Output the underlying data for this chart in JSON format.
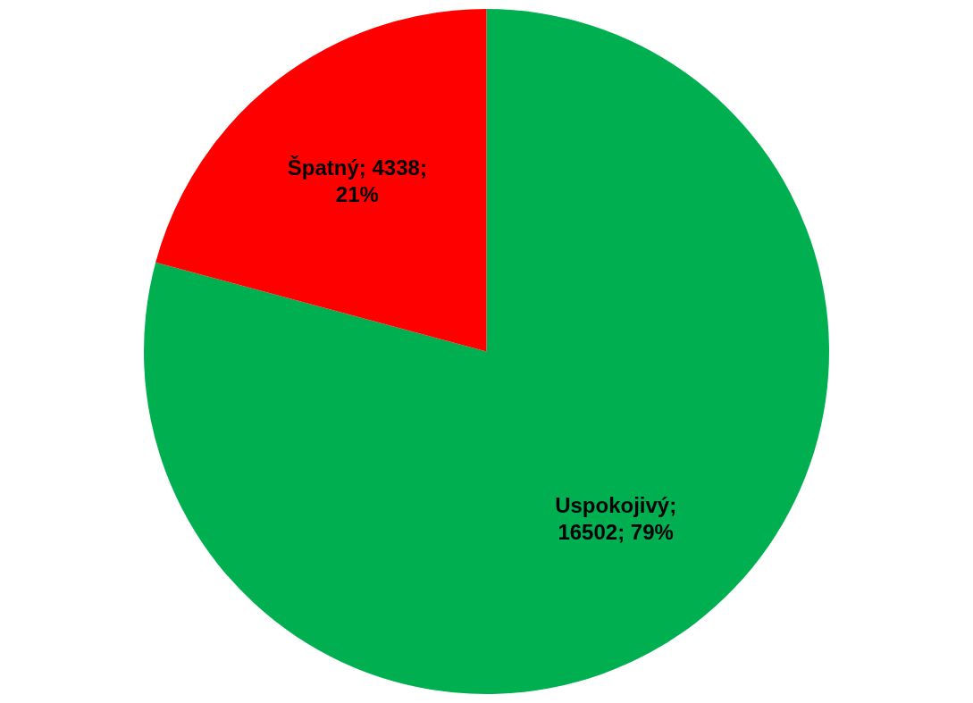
{
  "chart_data": {
    "type": "pie",
    "categories": [
      "Uspokojivý",
      "Špatný"
    ],
    "values": [
      16502,
      4338
    ],
    "colors": [
      "#00b050",
      "#ff0000"
    ],
    "value_labels": [
      "; 16502; 79%",
      "; 4338; 21%"
    ],
    "legend": false
  }
}
